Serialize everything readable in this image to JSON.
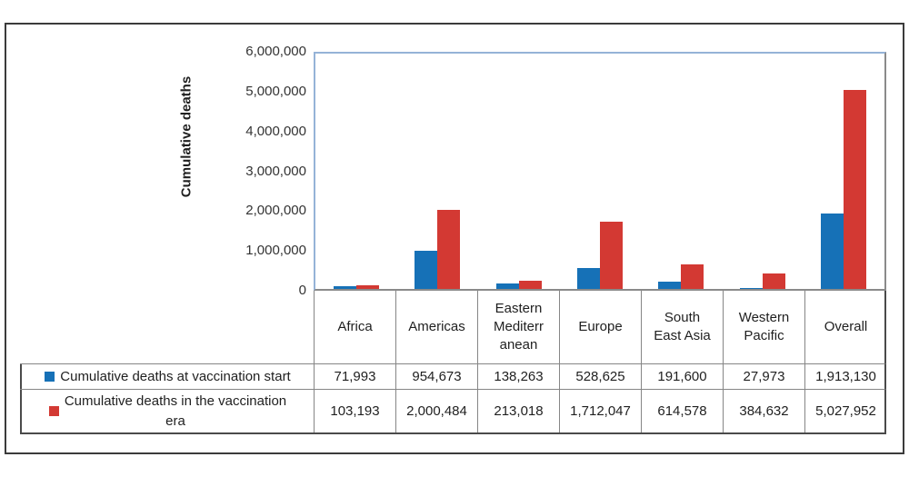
{
  "figure": {
    "ylabel": "Cumulative deaths"
  },
  "colors": {
    "series_blue": "#1671b7",
    "series_red": "#d33933",
    "plot_border_blue": "#95b3d7",
    "axis_gray": "#8a8a8a",
    "table_outer_border": "#4a4a4a",
    "frame_border": "#3b3b3b"
  },
  "chart_data": {
    "type": "bar",
    "title": "",
    "xlabel": "",
    "ylabel": "Cumulative deaths",
    "ylim": [
      0,
      6000000
    ],
    "grid": false,
    "legend_position": "table-left",
    "ytick_labels": [
      "6,000,000",
      "5,000,000",
      "4,000,000",
      "3,000,000",
      "2,000,000",
      "1,000,000",
      "0"
    ],
    "categories": [
      "Africa",
      "Americas",
      "Eastern\nMediterr\nanean",
      "Europe",
      "South\nEast Asia",
      "Western\nPacific",
      "Overall"
    ],
    "series": [
      {
        "name": "Cumulative deaths at vaccination start",
        "label_display": "Cumulative deaths at vaccination start",
        "color": "#1671b7",
        "values": [
          71993,
          954673,
          138263,
          528625,
          191600,
          27973,
          1913130
        ],
        "formatted": [
          "71,993",
          "954,673",
          "138,263",
          "528,625",
          "191,600",
          "27,973",
          "1,913,130"
        ]
      },
      {
        "name": "Cumulative deaths in the vaccination era",
        "label_display": "Cumulative deaths in the vaccination\nera",
        "color": "#d33933",
        "values": [
          103193,
          2000484,
          213018,
          1712047,
          614578,
          384632,
          5027952
        ],
        "formatted": [
          "103,193",
          "2,000,484",
          "213,018",
          "1,712,047",
          "614,578",
          "384,632",
          "5,027,952"
        ]
      }
    ]
  }
}
